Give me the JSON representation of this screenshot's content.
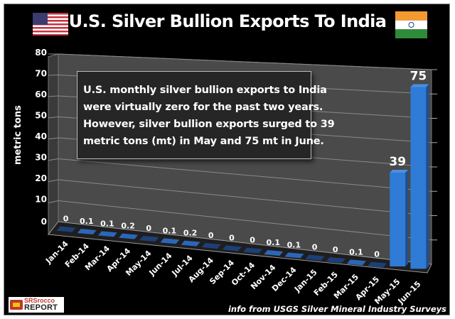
{
  "header": {
    "title": "U.S. Silver Bullion Exports To India",
    "left_flag": "us-flag-icon",
    "right_flag": "india-flag-icon"
  },
  "callout": {
    "lines": [
      "U.S. monthly silver bullion exports to India",
      "were virtually zero for the past two years.",
      "However, silver bullion exports surged to 39",
      "metric tons (mt) in May and 75 mt in June."
    ]
  },
  "footer": {
    "source": "info from USGS Silver Mineral Industry Surveys",
    "logo_line1": "SRSrocco",
    "logo_line2": "REPORT"
  },
  "colors": {
    "background": "#000000",
    "wall": "#4a4a4a",
    "bar": "#2f7bd6",
    "bar_dark": "#1f4f8f",
    "text": "#ffffff"
  },
  "chart_data": {
    "type": "bar",
    "style": "3d-column",
    "title": "U.S. Silver Bullion Exports To India",
    "xlabel": "",
    "ylabel": "metric tons",
    "ylim": [
      0,
      80
    ],
    "yticks": [
      0,
      10,
      20,
      30,
      40,
      50,
      60,
      70,
      80
    ],
    "grid": true,
    "categories": [
      "Jan-14",
      "Feb-14",
      "Mar-14",
      "Apr-14",
      "May-14",
      "Jun-14",
      "Jul-14",
      "Aug-14",
      "Sep-14",
      "Oct-14",
      "Nov-14",
      "Dec-14",
      "Jan-15",
      "Feb-15",
      "Mar-15",
      "Apr-15",
      "May-15",
      "Jun-15"
    ],
    "values": [
      0,
      0.1,
      0.1,
      0.2,
      0,
      0.1,
      0.2,
      0,
      0,
      0,
      0.1,
      0.1,
      0,
      0,
      0.1,
      0,
      39,
      75
    ],
    "data_labels": [
      "0",
      "0.1",
      "0.1",
      "0.2",
      "0",
      "0.1",
      "0.2",
      "0",
      "0",
      "0",
      "0.1",
      "0.1",
      "0",
      "0",
      "0.1",
      "0",
      "39",
      "75"
    ],
    "legend": "none",
    "source": "info from USGS Silver Mineral Industry Surveys"
  }
}
